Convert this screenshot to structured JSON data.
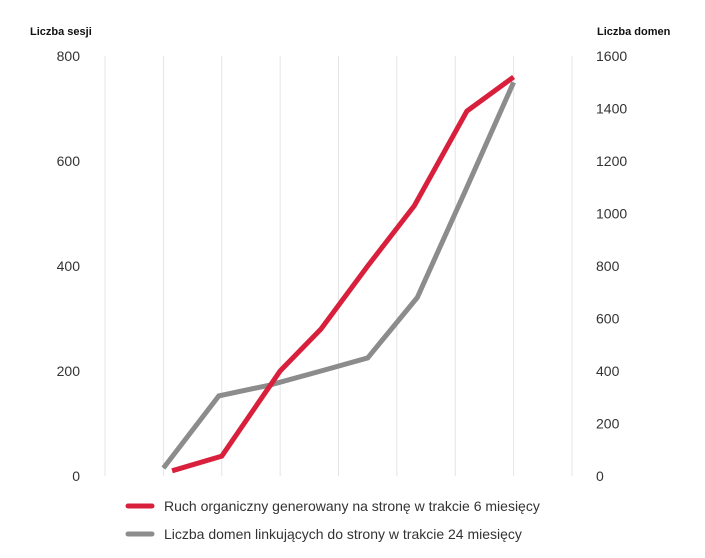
{
  "chart_data": {
    "type": "line",
    "title": "",
    "ylabel_left": "Liczba sesji",
    "ylabel_right": "Liczba domen",
    "ylim_left": [
      0,
      800
    ],
    "ylim_right": [
      0,
      1600
    ],
    "yticks_left": [
      "0",
      "200",
      "400",
      "600",
      "800"
    ],
    "yticks_right": [
      "0",
      "200",
      "400",
      "600",
      "800",
      "1000",
      "1200",
      "1400",
      "1600"
    ],
    "x_categories": 8,
    "grid": "vertical",
    "legend_position": "bottom",
    "series": [
      {
        "name": "Ruch organiczny generowany na stronę w trakcie 6 miesięcy",
        "axis": "left",
        "color": "#d8203c",
        "x": [
          1.15,
          2.0,
          3.0,
          3.7,
          4.5,
          5.3,
          6.2,
          7.0
        ],
        "values": [
          10,
          38,
          200,
          280,
          400,
          515,
          695,
          760
        ]
      },
      {
        "name": "Liczba domen linkujących do strony w trakcie 24 miesięcy",
        "axis": "right",
        "color": "#8c8c8c",
        "x": [
          1.0,
          1.95,
          2.8,
          3.7,
          4.5,
          5.35,
          6.2,
          7.0
        ],
        "values": [
          30,
          305,
          345,
          400,
          450,
          680,
          1100,
          1500
        ]
      }
    ]
  }
}
